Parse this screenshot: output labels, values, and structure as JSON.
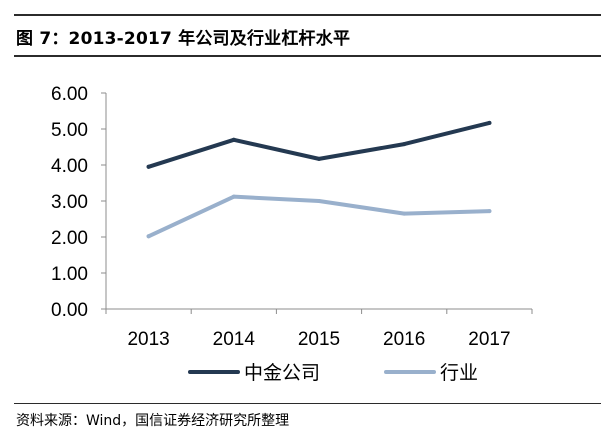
{
  "figure": {
    "title": "图 7：2013-2017 年公司及行业杠杆水平",
    "source": "资料来源：Wind，国信证券经济研究所整理"
  },
  "chart_data": {
    "type": "line",
    "x": [
      "2013",
      "2014",
      "2015",
      "2016",
      "2017"
    ],
    "series": [
      {
        "name": "中金公司",
        "color": "#243951",
        "values": [
          3.95,
          4.7,
          4.17,
          4.58,
          5.17
        ]
      },
      {
        "name": "行业",
        "color": "#99b0cc",
        "values": [
          2.02,
          3.12,
          3.0,
          2.65,
          2.72
        ]
      }
    ],
    "yticks": [
      "0.00",
      "1.00",
      "2.00",
      "3.00",
      "4.00",
      "5.00",
      "6.00"
    ],
    "ylim": [
      0,
      6
    ],
    "title": "",
    "xlabel": "",
    "ylabel": "",
    "grid": false,
    "legend": "bottom"
  }
}
